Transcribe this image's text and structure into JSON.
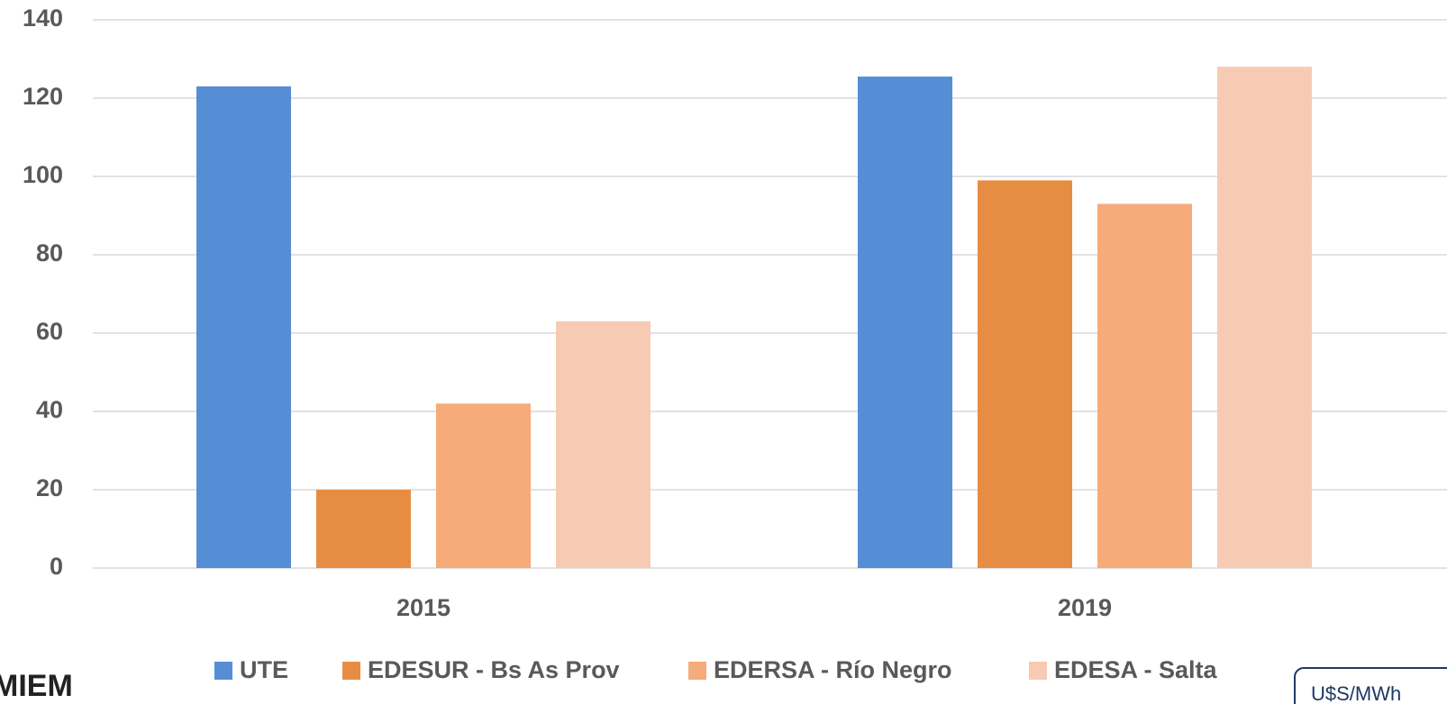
{
  "chart_data": {
    "type": "bar",
    "categories": [
      "2015",
      "2019"
    ],
    "series": [
      {
        "name": "UTE",
        "color": "#558ed5",
        "values": [
          123,
          125.5
        ]
      },
      {
        "name": "EDESUR - Bs As Prov",
        "color": "#e78d43",
        "values": [
          20,
          99
        ]
      },
      {
        "name": "EDERSA - Río Negro",
        "color": "#f5ab7a",
        "values": [
          42,
          93
        ]
      },
      {
        "name": "EDESA - Salta",
        "color": "#f7cbb3",
        "values": [
          63,
          128
        ]
      }
    ],
    "ylim": [
      0,
      140
    ],
    "yticks": [
      0,
      20,
      40,
      60,
      80,
      100,
      120,
      140
    ],
    "grid": true,
    "legend": "bottom",
    "logo": "MIEM",
    "unit_label": "U$S/MWh"
  }
}
